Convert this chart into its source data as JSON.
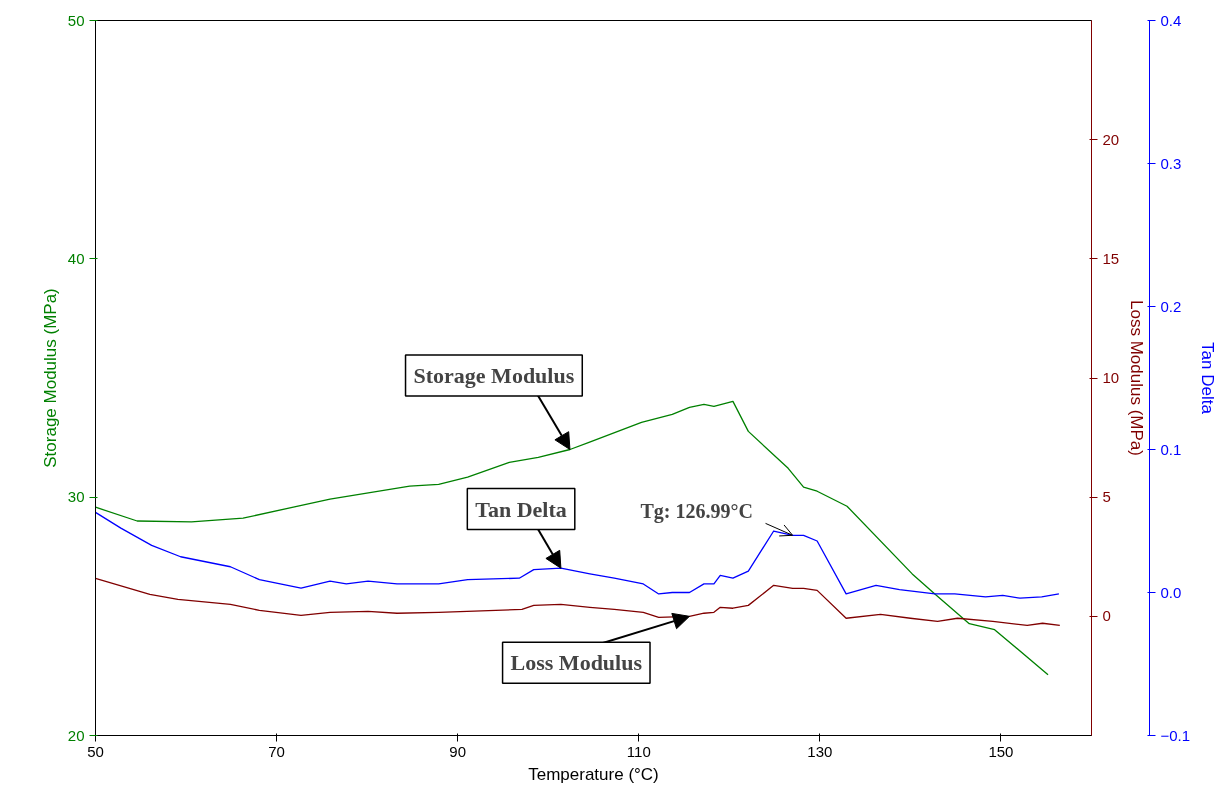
{
  "chart_data": {
    "type": "line",
    "xlabel": "Temperature (°C)",
    "ylabel": "Storage Modulus (MPa)",
    "y2label": "Loss Modulus (MPa)",
    "y3label": "Tan Delta",
    "xlim": [
      50,
      160
    ],
    "xticks": [
      50,
      70,
      90,
      110,
      130,
      150
    ],
    "ylim": [
      20,
      50
    ],
    "yticks": [
      20,
      30,
      40,
      50
    ],
    "y2lim": [
      -5,
      25
    ],
    "y2ticks": [
      0,
      5,
      10,
      15,
      20
    ],
    "y3lim": [
      -0.1,
      0.4
    ],
    "y3ticks": [
      -0.1,
      {
        "value": 0,
        "label": "0.0"
      },
      0.1,
      0.2,
      0.3,
      0.4
    ],
    "grid": false,
    "line_style": "solid",
    "series": [
      {
        "color": "#008000",
        "x": [
          50,
          54.6,
          60.6,
          66.3,
          75.9,
          84.7,
          87.9,
          91.1,
          95.7,
          98.9,
          102.4,
          104.5,
          110.3,
          113.7,
          115.6,
          117.2,
          118.3,
          120.4,
          122.1,
          126.5,
          128.2,
          129.7,
          133.0,
          140.2,
          142.7,
          146.5,
          149.3,
          155.2
        ],
        "values": [
          29.58,
          29.0,
          28.96,
          29.12,
          29.92,
          30.46,
          30.54,
          30.84,
          31.46,
          31.67,
          32.0,
          32.3,
          33.14,
          33.47,
          33.77,
          33.89,
          33.81,
          34.02,
          32.76,
          31.21,
          30.42,
          30.25,
          29.62,
          26.78,
          25.94,
          24.69,
          24.44,
          22.55
        ]
      },
      {
        "color": "#0000ff",
        "axis": "y3",
        "x": [
          50,
          52.8,
          56.2,
          59.4,
          64.9,
          68.1,
          72.7,
          75.9,
          77.7,
          80.1,
          83.3,
          87.9,
          91.1,
          96.8,
          98.4,
          101.4,
          104.6,
          107.3,
          110.5,
          112.2,
          113.7,
          115.6,
          117.2,
          118.3,
          119.0,
          120.4,
          122.1,
          124.9,
          127.0,
          128.2,
          129.7,
          132.9,
          136.2,
          138.8,
          142.7,
          144.9,
          148.3,
          150.2,
          152.1,
          154.5,
          156.4
        ],
        "values": [
          0.056,
          0.045,
          0.033,
          0.025,
          0.018,
          0.009,
          0.003,
          0.008,
          0.006,
          0.008,
          0.006,
          0.006,
          0.009,
          0.01,
          0.016,
          0.017,
          0.013,
          0.01,
          0.006,
          -0.001,
          0.0,
          0.0,
          0.006,
          0.006,
          0.012,
          0.01,
          0.015,
          0.043,
          0.04,
          0.04,
          0.036,
          -0.001,
          0.005,
          0.002,
          -0.001,
          -0.001,
          -0.003,
          -0.002,
          -0.004,
          -0.003,
          -0.001
        ]
      },
      {
        "color": "#800000",
        "axis": "y2",
        "x": [
          50,
          56.0,
          59.1,
          64.9,
          68.1,
          72.7,
          75.9,
          80.1,
          83.3,
          87.9,
          97.1,
          98.4,
          101.4,
          104.6,
          107.3,
          110.5,
          112.2,
          115.6,
          117.2,
          118.3,
          119.0,
          120.4,
          122.1,
          124.9,
          127.0,
          128.2,
          129.7,
          132.9,
          136.7,
          140.0,
          143.0,
          145.2,
          149.1,
          152.9,
          154.6,
          156.5
        ],
        "values": [
          1.59,
          0.92,
          0.71,
          0.5,
          0.25,
          0.04,
          0.17,
          0.21,
          0.13,
          0.17,
          0.29,
          0.46,
          0.5,
          0.38,
          0.29,
          0.17,
          -0.04,
          0.0,
          0.13,
          0.17,
          0.38,
          0.34,
          0.46,
          1.3,
          1.17,
          1.17,
          1.09,
          -0.08,
          0.08,
          -0.08,
          -0.21,
          -0.08,
          -0.21,
          -0.38,
          -0.29,
          -0.38
        ]
      }
    ],
    "annotations": [
      {
        "text": "Storage Modulus",
        "x": 102.4,
        "y": 32.0
      },
      {
        "text": "Tan Delta",
        "x": 101.4,
        "y": 27.02
      },
      {
        "text": "Loss Modulus",
        "x": 115.6,
        "y": 25.0
      },
      {
        "text": "Tg: 126.99°C",
        "x": 126.99,
        "y": 28.4
      }
    ]
  }
}
